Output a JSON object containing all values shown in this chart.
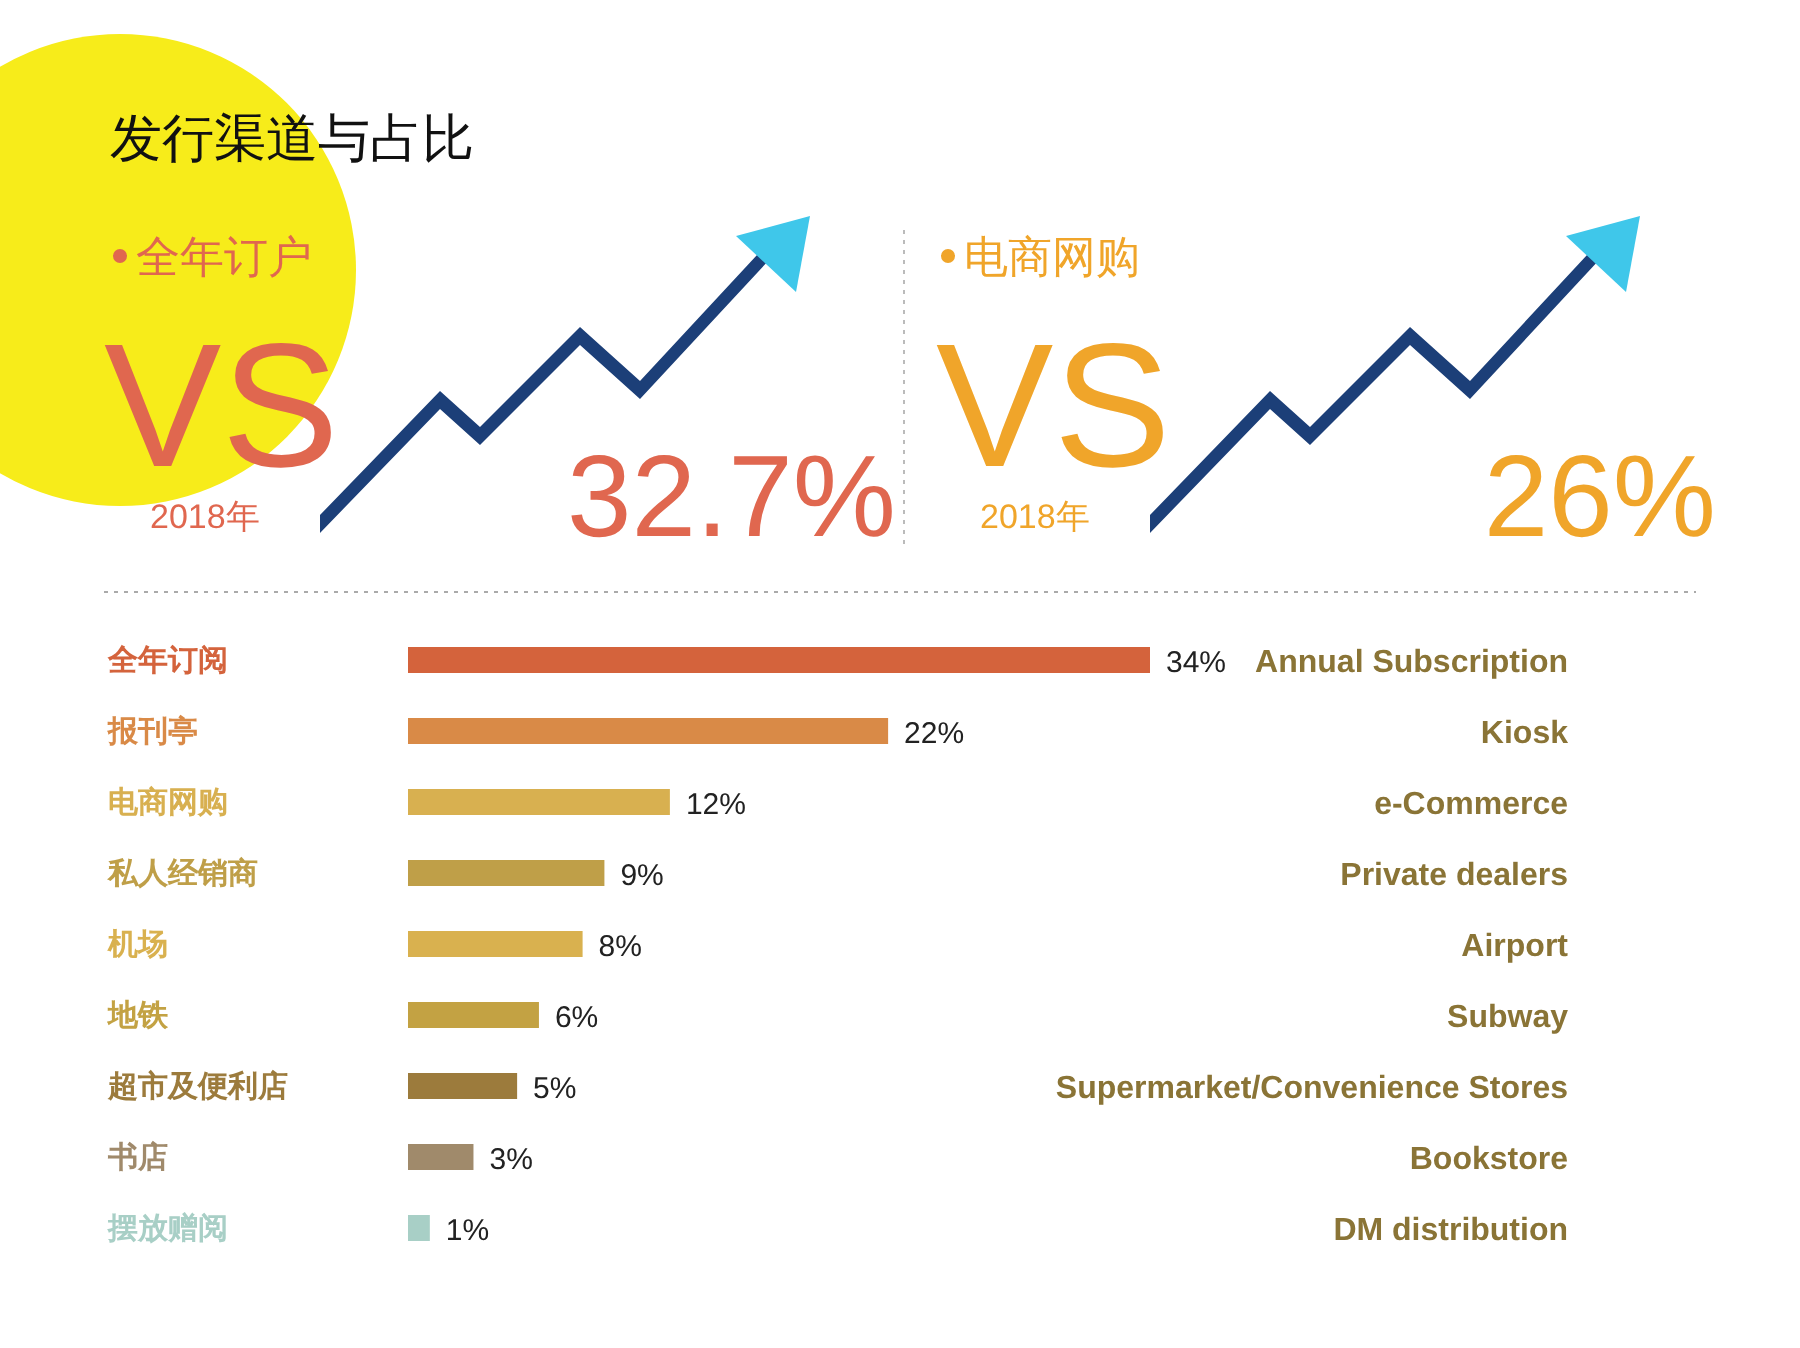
{
  "chart_data": [
    {
      "type": "other",
      "title": "发行渠道与占比",
      "annotations": [
        "全年订户",
        "VS",
        "2018年",
        "32.7%",
        "电商网购",
        "VS",
        "2018年",
        "26%"
      ]
    },
    {
      "type": "bar",
      "orientation": "horizontal",
      "categories": [
        "全年订阅",
        "报刊亭",
        "电商网购",
        "私人经销商",
        "机场",
        "地铁",
        "超市及便利店",
        "书店",
        "摆放赠阅"
      ],
      "values": [
        34,
        22,
        12,
        9,
        8,
        6,
        5,
        3,
        1
      ],
      "colors": [
        "#d4633c",
        "#d98a47",
        "#d8b050",
        "#bf9f48",
        "#d9b14f",
        "#c3a243",
        "#9c7b3c",
        "#a08a6b",
        "#a8cfc6"
      ],
      "value_labels": [
        "34%",
        "22%",
        "12%",
        "9%",
        "8%",
        "6%",
        "5%",
        "3%",
        "1%"
      ],
      "annotations": [
        "Annual Subscription",
        "Kiosk",
        "e-Commerce",
        "Private dealers",
        "Airport",
        "Subway",
        "Supermarket/Convenience Stores",
        "Bookstore",
        "DM distribution"
      ]
    }
  ]
}
